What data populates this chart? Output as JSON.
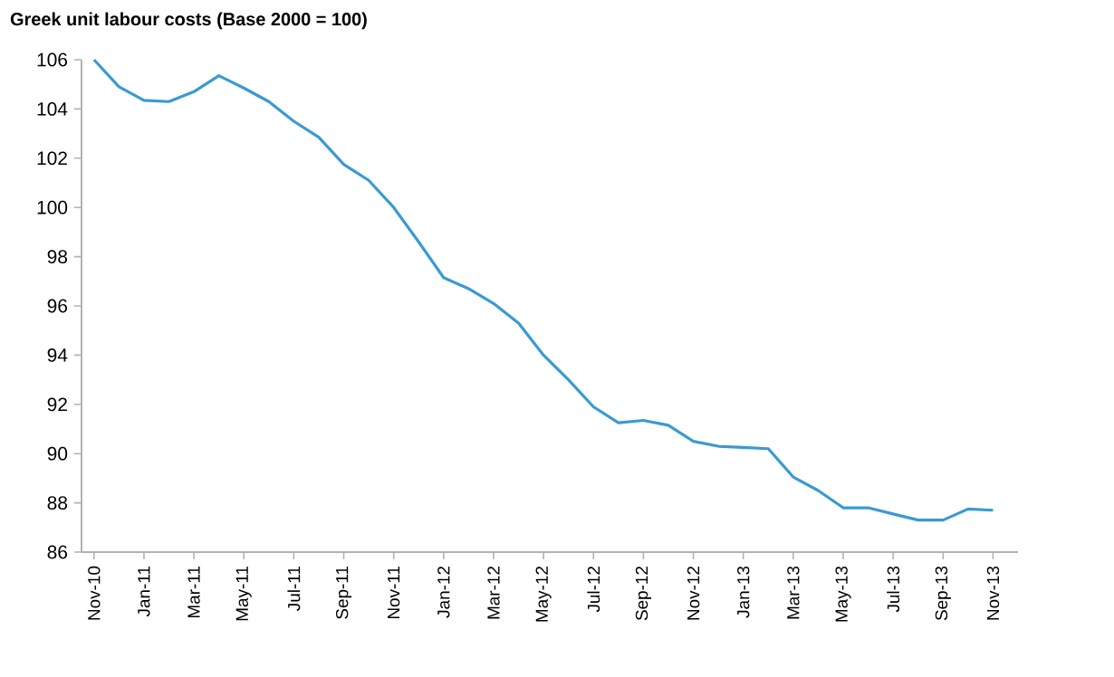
{
  "chart_data": {
    "type": "line",
    "title": "Greek unit labour costs (Base 2000 = 100)",
    "categories": [
      "Nov-10",
      null,
      "Jan-11",
      null,
      "Mar-11",
      null,
      "May-11",
      null,
      "Jul-11",
      null,
      "Sep-11",
      null,
      "Nov-11",
      null,
      "Jan-12",
      null,
      "Mar-12",
      null,
      "May-12",
      null,
      "Jul-12",
      null,
      "Sep-12",
      null,
      "Nov-12",
      null,
      "Jan-13",
      null,
      "Mar-13",
      null,
      "May-13",
      null,
      "Jul-13",
      null,
      "Sep-13",
      null,
      "Nov-13"
    ],
    "values": [
      106.0,
      104.9,
      104.35,
      104.3,
      104.7,
      105.35,
      104.85,
      104.3,
      103.5,
      102.85,
      101.75,
      101.1,
      100.0,
      98.6,
      97.15,
      96.7,
      96.1,
      95.3,
      94.0,
      93.0,
      91.9,
      91.25,
      91.35,
      91.15,
      90.5,
      90.3,
      90.25,
      90.2,
      89.05,
      88.5,
      87.8,
      87.8,
      87.55,
      87.3,
      87.3,
      87.75,
      87.7
    ],
    "color": "#3a9ad1",
    "ylim": [
      86,
      106
    ],
    "yticks": [
      86,
      88,
      90,
      92,
      94,
      96,
      98,
      100,
      102,
      104,
      106
    ],
    "grid": false,
    "marker": "none",
    "line_style": "solid"
  }
}
